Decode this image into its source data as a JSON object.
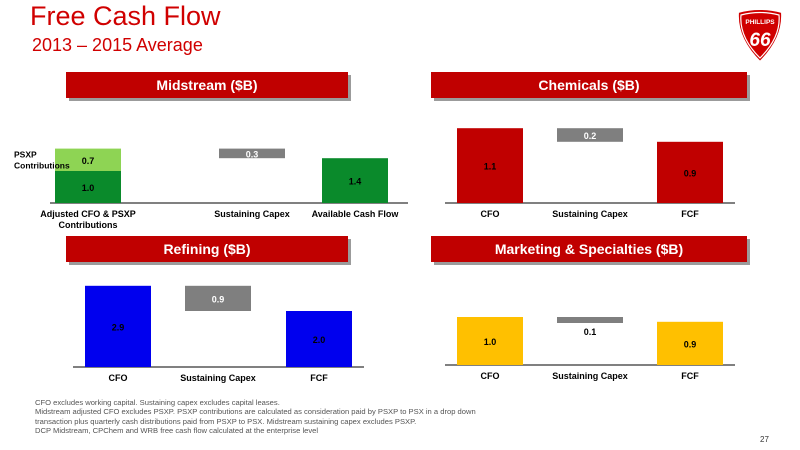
{
  "header": {
    "title": "Free Cash Flow",
    "subtitle": "2013 – 2015 Average"
  },
  "logo": {
    "text": "PHILLIPS 66",
    "colors": {
      "shield": "#d00000",
      "text": "#ffffff"
    }
  },
  "colors": {
    "green": "#0a8a2b",
    "light_green": "#8ed454",
    "gray": "#7f7f7f",
    "red": "#c00000",
    "blue": "#0000ee",
    "yellow": "#ffc000",
    "panel_header": "#c00000"
  },
  "chart_data": [
    {
      "type": "bar",
      "title": "Midstream ($B)",
      "categories": [
        "Adjusted CFO & PSXP Contributions",
        "Sustaining Capex",
        "Available Cash Flow"
      ],
      "series": [
        {
          "name": "",
          "values": [
            1.0,
            null,
            null
          ]
        },
        {
          "name": "PSXP Contributions",
          "values": [
            0.7,
            null,
            null
          ]
        },
        {
          "name": "",
          "values": [
            null,
            0.3,
            null
          ]
        },
        {
          "name": "",
          "values": [
            null,
            null,
            1.4
          ]
        }
      ],
      "notes": "Waterfall: Sustaining Capex shown as a floating decrease from 1.7 to 1.4",
      "ylim": [
        0,
        1.8
      ]
    },
    {
      "type": "bar",
      "title": "Chemicals ($B)",
      "categories": [
        "CFO",
        "Sustaining Capex",
        "FCF"
      ],
      "values": [
        1.1,
        0.2,
        0.9
      ],
      "notes": "Waterfall: Sustaining Capex shown as a floating decrease from 1.1 to 0.9",
      "ylim": [
        0,
        1.2
      ]
    },
    {
      "type": "bar",
      "title": "Refining ($B)",
      "categories": [
        "CFO",
        "Sustaining Capex",
        "FCF"
      ],
      "values": [
        2.9,
        0.9,
        2.0
      ],
      "notes": "Waterfall: Sustaining Capex shown as a floating decrease from 2.9 to 2.0",
      "ylim": [
        0,
        3.1
      ]
    },
    {
      "type": "bar",
      "title": "Marketing & Specialties ($B)",
      "categories": [
        "CFO",
        "Sustaining Capex",
        "FCF"
      ],
      "values": [
        1.0,
        0.1,
        0.9
      ],
      "notes": "Waterfall: Sustaining Capex shown as a floating decrease from 1.0 to 0.9",
      "ylim": [
        0,
        1.25
      ]
    }
  ],
  "footnotes": [
    "CFO excludes working capital.  Sustaining capex excludes capital leases.",
    "Midstream adjusted CFO excludes PSXP.  PSXP contributions are calculated as consideration paid by PSXP to PSX in a drop down",
    "transaction plus quarterly cash distributions paid from PSXP to PSX.  Midstream sustaining capex excludes PSXP.",
    "DCP Midstream, CPChem and WRB free cash flow calculated at the enterprise level"
  ],
  "page_number": "27"
}
